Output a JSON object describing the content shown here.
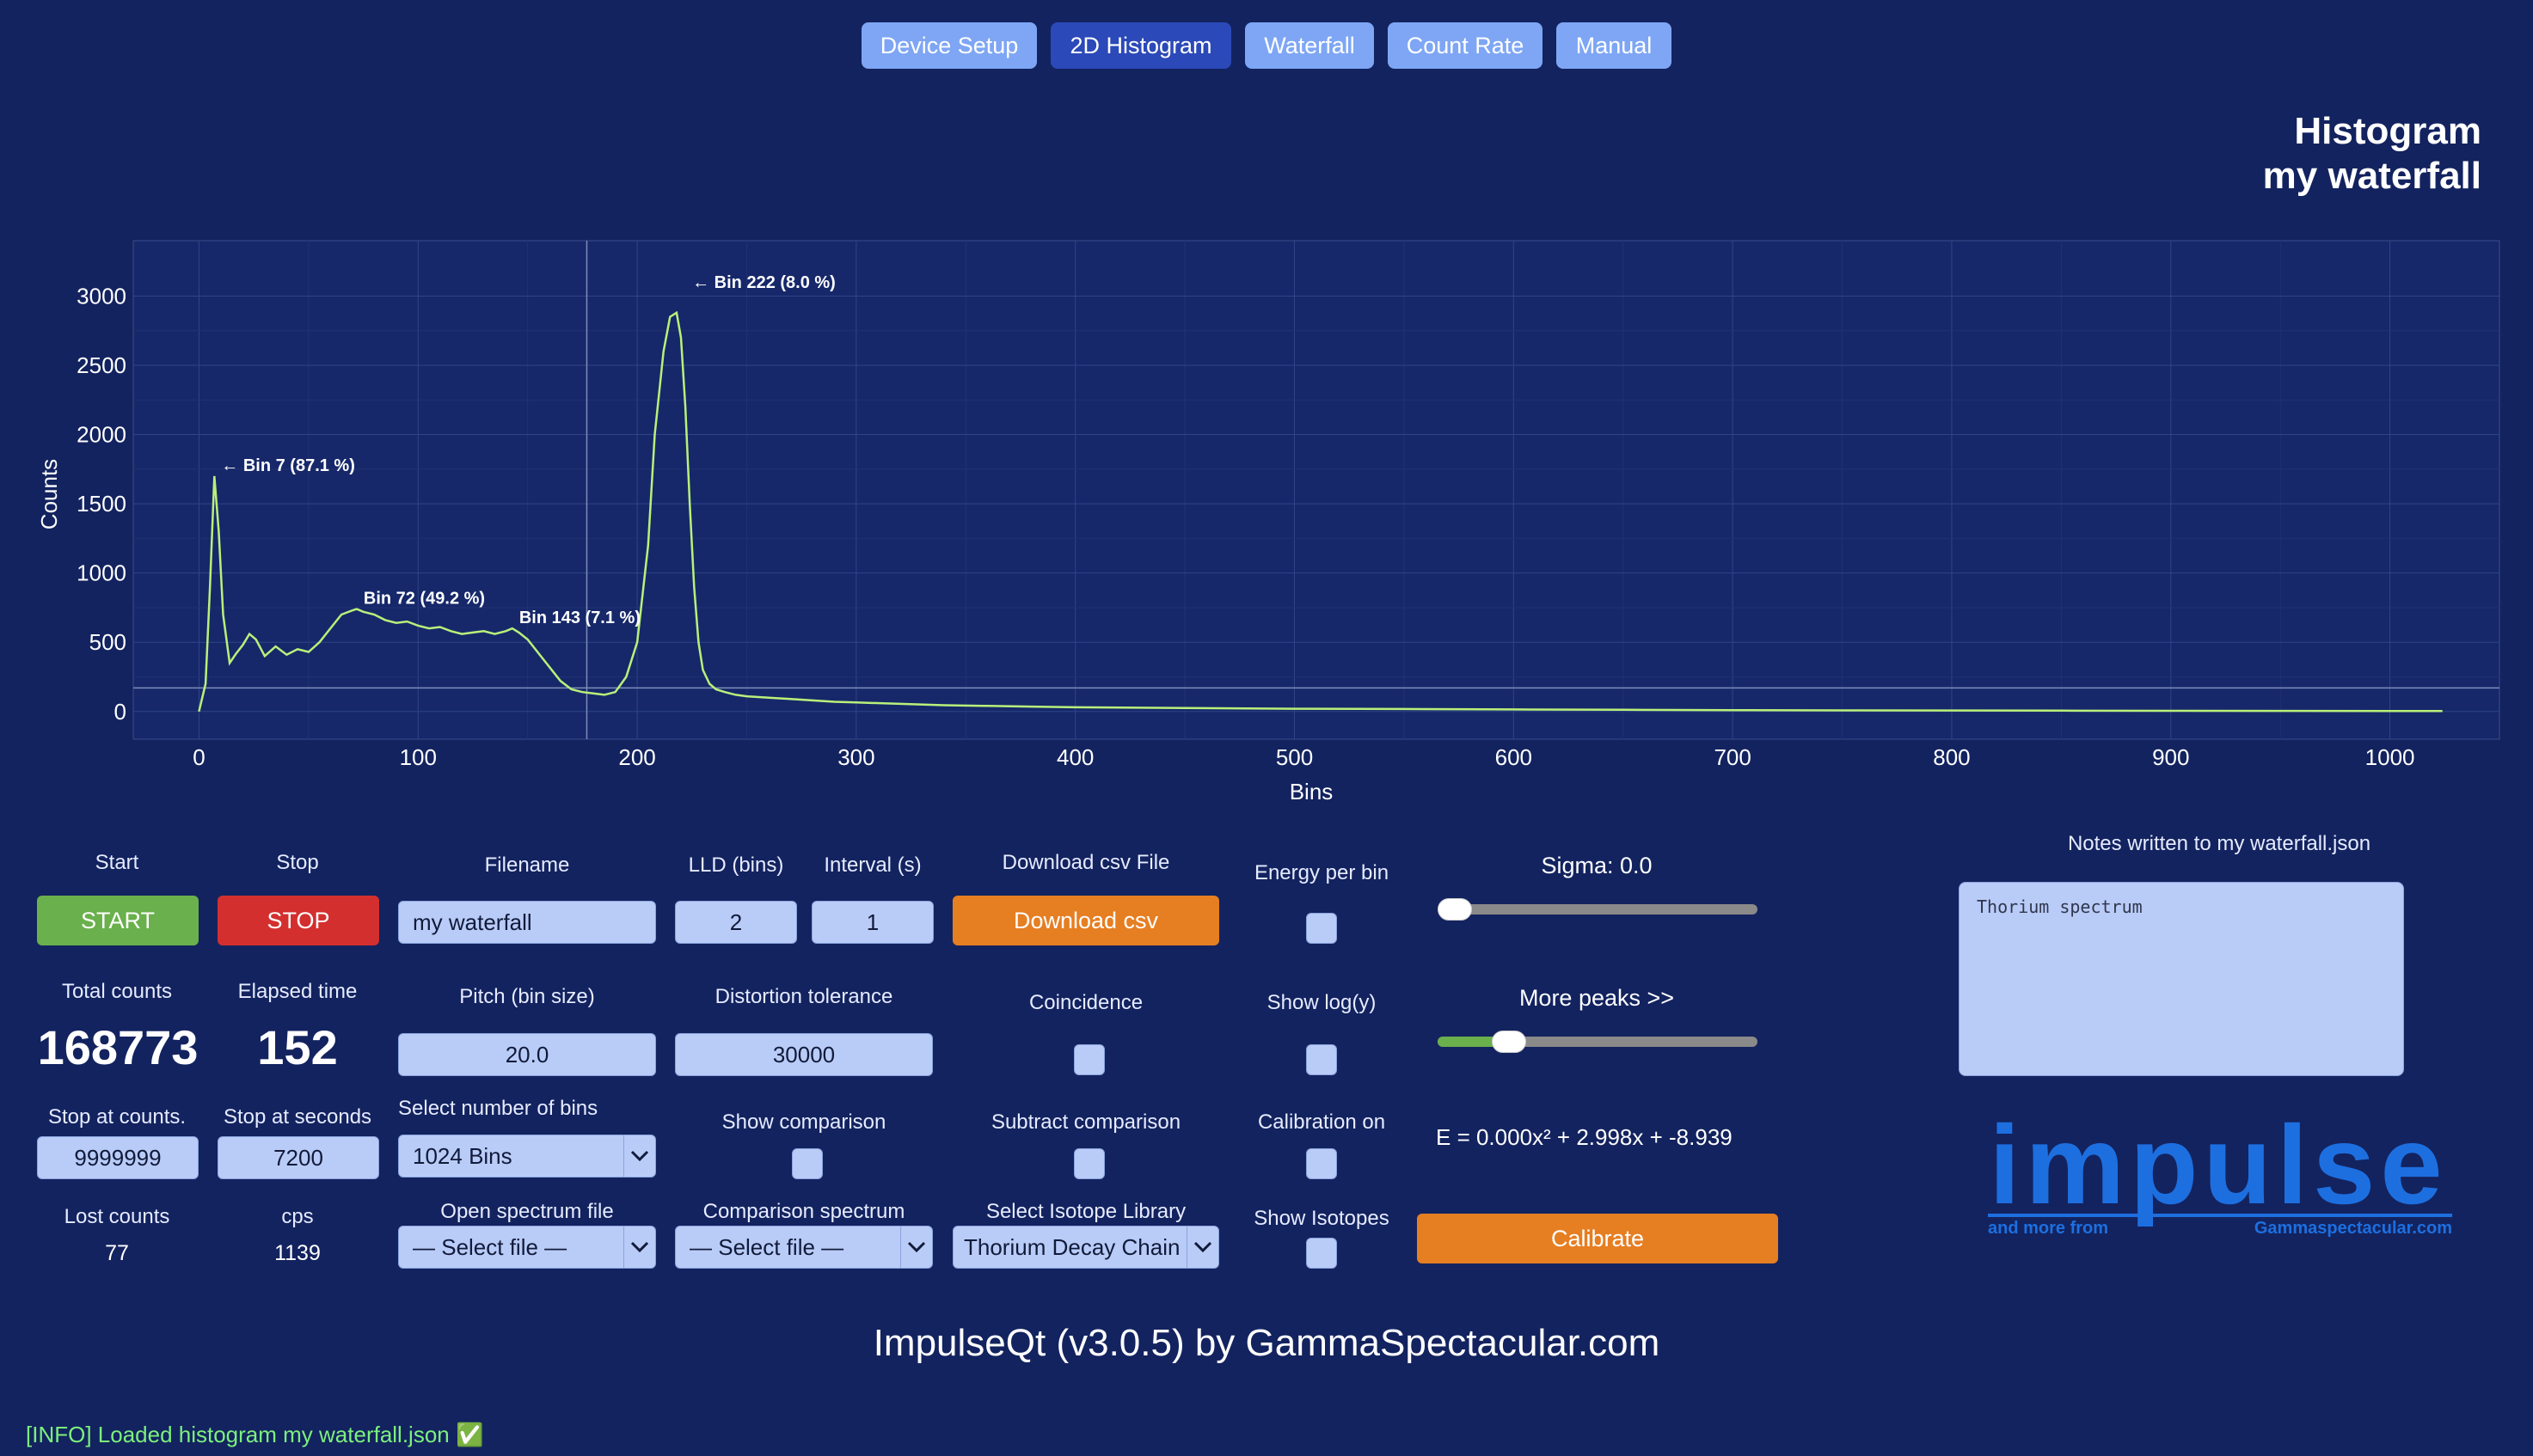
{
  "tabs": [
    {
      "label": "Device Setup",
      "active": false
    },
    {
      "label": "2D Histogram",
      "active": true
    },
    {
      "label": "Waterfall",
      "active": false
    },
    {
      "label": "Count Rate",
      "active": false
    },
    {
      "label": "Manual",
      "active": false
    }
  ],
  "header": {
    "title": "Histogram",
    "subtitle": "my waterfall"
  },
  "chart_data": {
    "type": "line",
    "xlabel": "Bins",
    "ylabel": "Counts",
    "xlim": [
      -30,
      1050
    ],
    "ylim": [
      -200,
      3400
    ],
    "xticks": [
      0,
      100,
      200,
      300,
      400,
      500,
      600,
      700,
      800,
      900,
      1000
    ],
    "yticks": [
      0,
      500,
      1000,
      1500,
      2000,
      2500,
      3000
    ],
    "grid": true,
    "series": [
      {
        "color": "#b9f07a",
        "x": [
          0,
          3,
          5,
          7,
          9,
          11,
          14,
          17,
          20,
          23,
          26,
          30,
          35,
          40,
          45,
          50,
          55,
          60,
          65,
          70,
          72,
          75,
          80,
          85,
          90,
          95,
          100,
          105,
          110,
          115,
          120,
          125,
          130,
          135,
          140,
          143,
          146,
          150,
          155,
          160,
          165,
          170,
          175,
          180,
          185,
          190,
          195,
          200,
          205,
          208,
          212,
          215,
          218,
          220,
          222,
          224,
          226,
          228,
          230,
          233,
          236,
          240,
          245,
          250,
          260,
          270,
          280,
          290,
          300,
          320,
          340,
          360,
          380,
          400,
          450,
          500,
          550,
          600,
          650,
          700,
          750,
          800,
          850,
          900,
          950,
          1000,
          1024
        ],
        "y": [
          0,
          200,
          900,
          1700,
          1300,
          700,
          350,
          420,
          480,
          560,
          520,
          400,
          470,
          410,
          450,
          430,
          500,
          600,
          700,
          730,
          740,
          720,
          700,
          660,
          640,
          650,
          620,
          600,
          610,
          580,
          560,
          570,
          580,
          560,
          580,
          600,
          570,
          520,
          420,
          320,
          220,
          160,
          140,
          130,
          120,
          140,
          250,
          500,
          1200,
          2000,
          2600,
          2850,
          2880,
          2700,
          2200,
          1500,
          900,
          500,
          300,
          200,
          160,
          140,
          120,
          110,
          100,
          90,
          80,
          70,
          65,
          55,
          45,
          40,
          35,
          30,
          25,
          20,
          18,
          15,
          12,
          10,
          8,
          7,
          6,
          5,
          4,
          3,
          3
        ]
      }
    ],
    "annotations": [
      {
        "text": "← Bin 7 (87.1 %)",
        "x": 7,
        "y": 1700
      },
      {
        "text": "Bin 72 (49.2 %)",
        "x": 72,
        "y": 740
      },
      {
        "text": "Bin 143 (7.1 %)",
        "x": 143,
        "y": 600
      },
      {
        "text": "← Bin 222 (8.0 %)",
        "x": 222,
        "y": 3020
      }
    ],
    "markers": {
      "vline_x": 177,
      "hline_y": 170
    }
  },
  "controls": {
    "start_label": "Start",
    "start_button": "START",
    "stop_label": "Stop",
    "stop_button": "STOP",
    "filename_label": "Filename",
    "filename_value": "my waterfall",
    "lld_label": "LLD (bins)",
    "lld_value": "2",
    "interval_label": "Interval (s)",
    "interval_value": "1",
    "download_label": "Download csv File",
    "download_button": "Download csv",
    "energy_label": "Energy per bin",
    "sigma_label": "Sigma: 0.0",
    "sigma_value": 0.0,
    "notes_label": "Notes written to my waterfall.json",
    "notes_value": "Thorium spectrum",
    "total_counts_label": "Total counts",
    "total_counts": "168773",
    "elapsed_label": "Elapsed time",
    "elapsed": "152",
    "pitch_label": "Pitch (bin size)",
    "pitch_value": "20.0",
    "distortion_label": "Distortion tolerance",
    "distortion_value": "30000",
    "coincidence_label": "Coincidence",
    "showlog_label": "Show log(y)",
    "morepeaks_label": "More peaks >>",
    "morepeaks_value": 0.2,
    "stop_counts_label": "Stop at counts.",
    "stop_counts_value": "9999999",
    "stop_seconds_label": "Stop at seconds",
    "stop_seconds_value": "7200",
    "bins_label": "Select number of bins",
    "bins_value": "1024 Bins",
    "show_comparison_label": "Show comparison",
    "subtract_comparison_label": "Subtract comparison",
    "calibration_label": "Calibration on",
    "formula": "E = 0.000x² + 2.998x + -8.939",
    "lost_counts_label": "Lost counts",
    "lost_counts": "77",
    "cps_label": "cps",
    "cps": "1139",
    "open_spectrum_label": "Open spectrum file",
    "open_spectrum_value": "— Select file —",
    "comparison_spectrum_label": "Comparison spectrum",
    "comparison_spectrum_value": "— Select file —",
    "isotope_label": "Select Isotope Library",
    "isotope_value": "Thorium Decay Chain",
    "show_isotopes_label": "Show Isotopes",
    "calibrate_button": "Calibrate"
  },
  "logo": {
    "word": "impulse",
    "left": "and more from",
    "right": "Gammaspectacular.com"
  },
  "footer": {
    "title": "ImpulseQt (v3.0.5) by GammaSpectacular.com",
    "status": "[INFO] Loaded histogram my waterfall.json ✅"
  },
  "colors": {
    "background": "#13235f",
    "green": "#6ab04c",
    "red": "#d32f2f",
    "orange": "#e67e22",
    "tab": "#7ea6f4",
    "tab_active": "#2b49b8"
  }
}
